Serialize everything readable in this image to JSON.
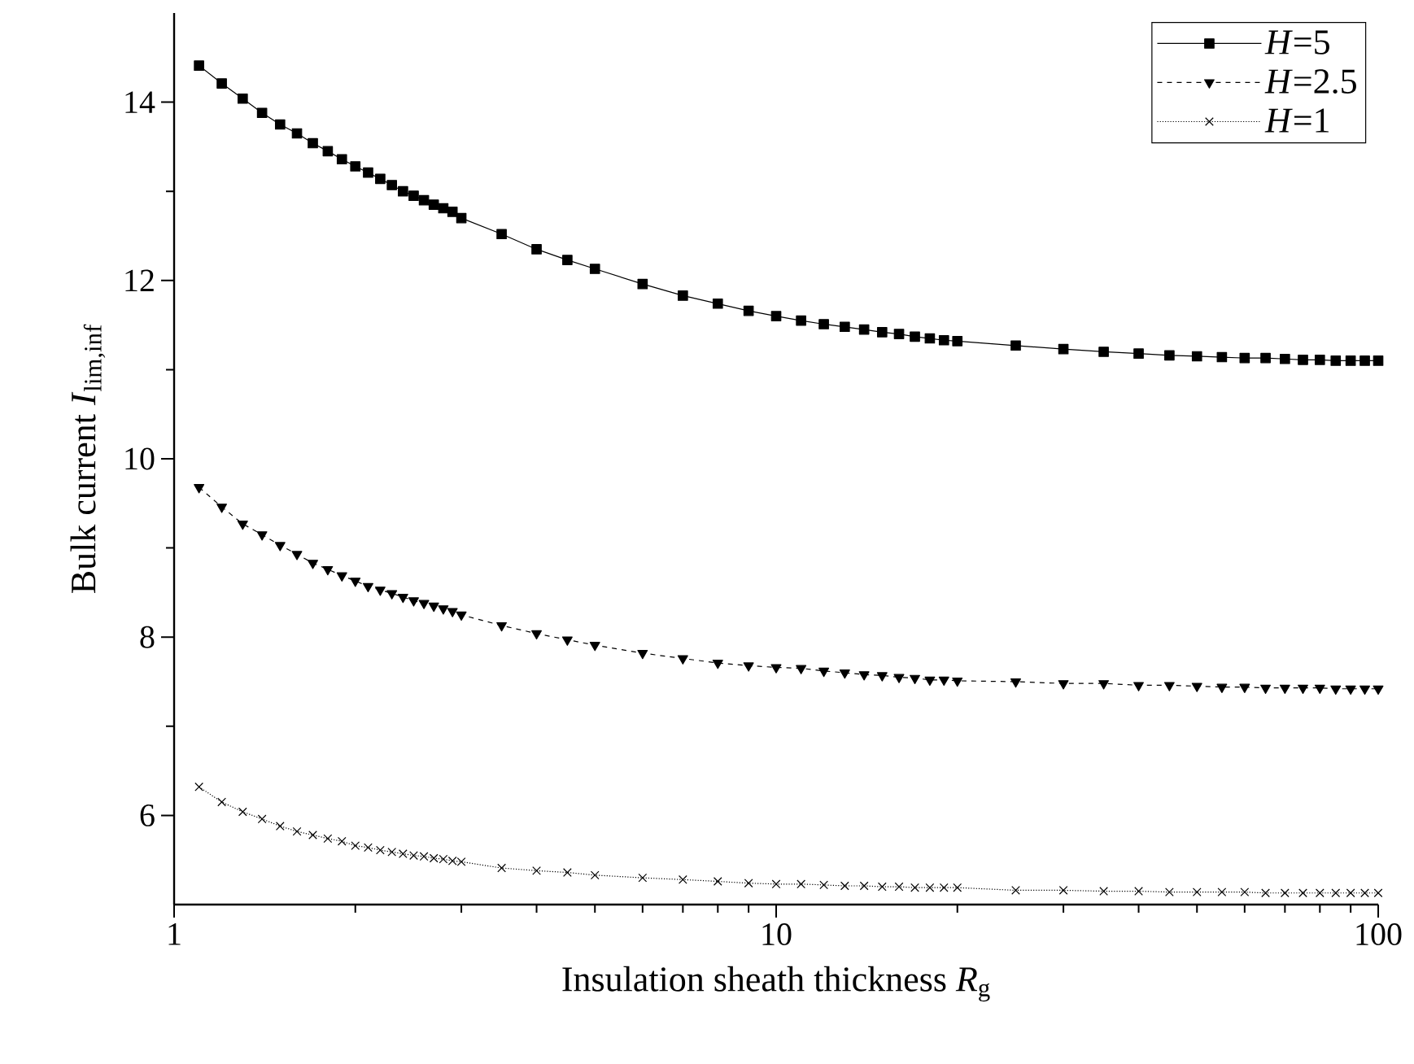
{
  "chart_data": {
    "type": "line",
    "xlabel": "Insulation sheath thickness *R*$_{g}$",
    "ylabel": "Bulk current *I*$_{lim,inf}$",
    "log": "x",
    "xlim": [
      1,
      100
    ],
    "xticks": [
      1,
      10,
      100
    ],
    "ylim": [
      5,
      15
    ],
    "yticks": [
      6,
      8,
      10,
      12,
      14
    ],
    "grid": false,
    "legend": "top right",
    "x": [
      1.1,
      1.2,
      1.3,
      1.4,
      1.5,
      1.6,
      1.7,
      1.8,
      1.9,
      2.0,
      2.1,
      2.2,
      2.3,
      2.4,
      2.5,
      2.6,
      2.7,
      2.8,
      2.9,
      3.0,
      3.5,
      4,
      4.5,
      5,
      6,
      7,
      8,
      9,
      10,
      11,
      12,
      13,
      14,
      15,
      16,
      17,
      18,
      19,
      20,
      25,
      30,
      35,
      40,
      45,
      50,
      55,
      60,
      65,
      70,
      75,
      80,
      85,
      90,
      95,
      100
    ],
    "series": [
      {
        "name": "*H*=5",
        "color": "#000000",
        "marker": "square",
        "line_style": "solid",
        "values": [
          14.41,
          14.21,
          14.04,
          13.88,
          13.75,
          13.65,
          13.54,
          13.45,
          13.36,
          13.28,
          13.21,
          13.14,
          13.07,
          13.0,
          12.95,
          12.9,
          12.85,
          12.81,
          12.77,
          12.7,
          12.52,
          12.35,
          12.23,
          12.13,
          11.96,
          11.83,
          11.74,
          11.66,
          11.6,
          11.55,
          11.51,
          11.48,
          11.45,
          11.42,
          11.4,
          11.37,
          11.35,
          11.33,
          11.32,
          11.27,
          11.23,
          11.2,
          11.18,
          11.16,
          11.15,
          11.14,
          11.13,
          11.13,
          11.12,
          11.11,
          11.11,
          11.1,
          11.1,
          11.1,
          11.1
        ]
      },
      {
        "name": "*H*=2.5",
        "color": "#000000",
        "marker": "triangle",
        "line_style": "dashed",
        "values": [
          9.68,
          9.46,
          9.27,
          9.15,
          9.03,
          8.93,
          8.83,
          8.76,
          8.69,
          8.63,
          8.57,
          8.53,
          8.49,
          8.45,
          8.41,
          8.38,
          8.35,
          8.32,
          8.29,
          8.25,
          8.13,
          8.04,
          7.97,
          7.91,
          7.82,
          7.76,
          7.71,
          7.68,
          7.66,
          7.65,
          7.62,
          7.6,
          7.58,
          7.57,
          7.55,
          7.54,
          7.52,
          7.52,
          7.51,
          7.5,
          7.48,
          7.48,
          7.46,
          7.46,
          7.45,
          7.44,
          7.44,
          7.43,
          7.43,
          7.43,
          7.43,
          7.42,
          7.42,
          7.42,
          7.42
        ]
      },
      {
        "name": "*H*=1",
        "color": "#000000",
        "marker": "cross",
        "line_style": "dotted",
        "values": [
          6.32,
          6.15,
          6.04,
          5.96,
          5.88,
          5.82,
          5.78,
          5.74,
          5.71,
          5.66,
          5.64,
          5.61,
          5.59,
          5.57,
          5.55,
          5.54,
          5.52,
          5.51,
          5.49,
          5.48,
          5.41,
          5.38,
          5.36,
          5.33,
          5.3,
          5.28,
          5.26,
          5.24,
          5.23,
          5.23,
          5.22,
          5.21,
          5.21,
          5.2,
          5.2,
          5.19,
          5.19,
          5.19,
          5.19,
          5.16,
          5.16,
          5.15,
          5.15,
          5.14,
          5.14,
          5.14,
          5.14,
          5.13,
          5.13,
          5.13,
          5.13,
          5.13,
          5.13,
          5.13,
          5.13
        ]
      }
    ]
  }
}
